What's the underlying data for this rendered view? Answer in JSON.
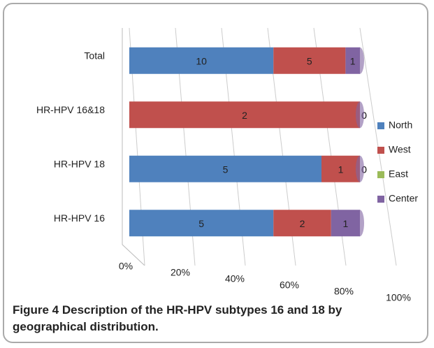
{
  "chart_data": {
    "type": "bar",
    "orientation": "horizontal",
    "stacking": "percent",
    "categories": [
      "HR-HPV 16",
      "HR-HPV 18",
      "HR-HPV 16&18",
      "Total"
    ],
    "series": [
      {
        "name": "North",
        "color": "#4f81bd",
        "values": [
          5,
          5,
          0,
          10
        ]
      },
      {
        "name": "West",
        "color": "#c0504d",
        "values": [
          2,
          1,
          2,
          5
        ]
      },
      {
        "name": "East",
        "color": "#9bbb59",
        "values": [
          0,
          0,
          0,
          0
        ]
      },
      {
        "name": "Center",
        "color": "#8064a2",
        "values": [
          1,
          0,
          0,
          1
        ]
      }
    ],
    "xlim": [
      0,
      100
    ],
    "xticks": [
      {
        "value": 0,
        "label": "0%"
      },
      {
        "value": 20,
        "label": "20%"
      },
      {
        "value": 40,
        "label": "40%"
      },
      {
        "value": 60,
        "label": "60%"
      },
      {
        "value": 80,
        "label": "80%"
      },
      {
        "value": 100,
        "label": "100%"
      }
    ],
    "grid": true,
    "legend": "right"
  },
  "caption": "Figure 4 Description of the HR-HPV subtypes 16 and 18 by geographical distribution."
}
